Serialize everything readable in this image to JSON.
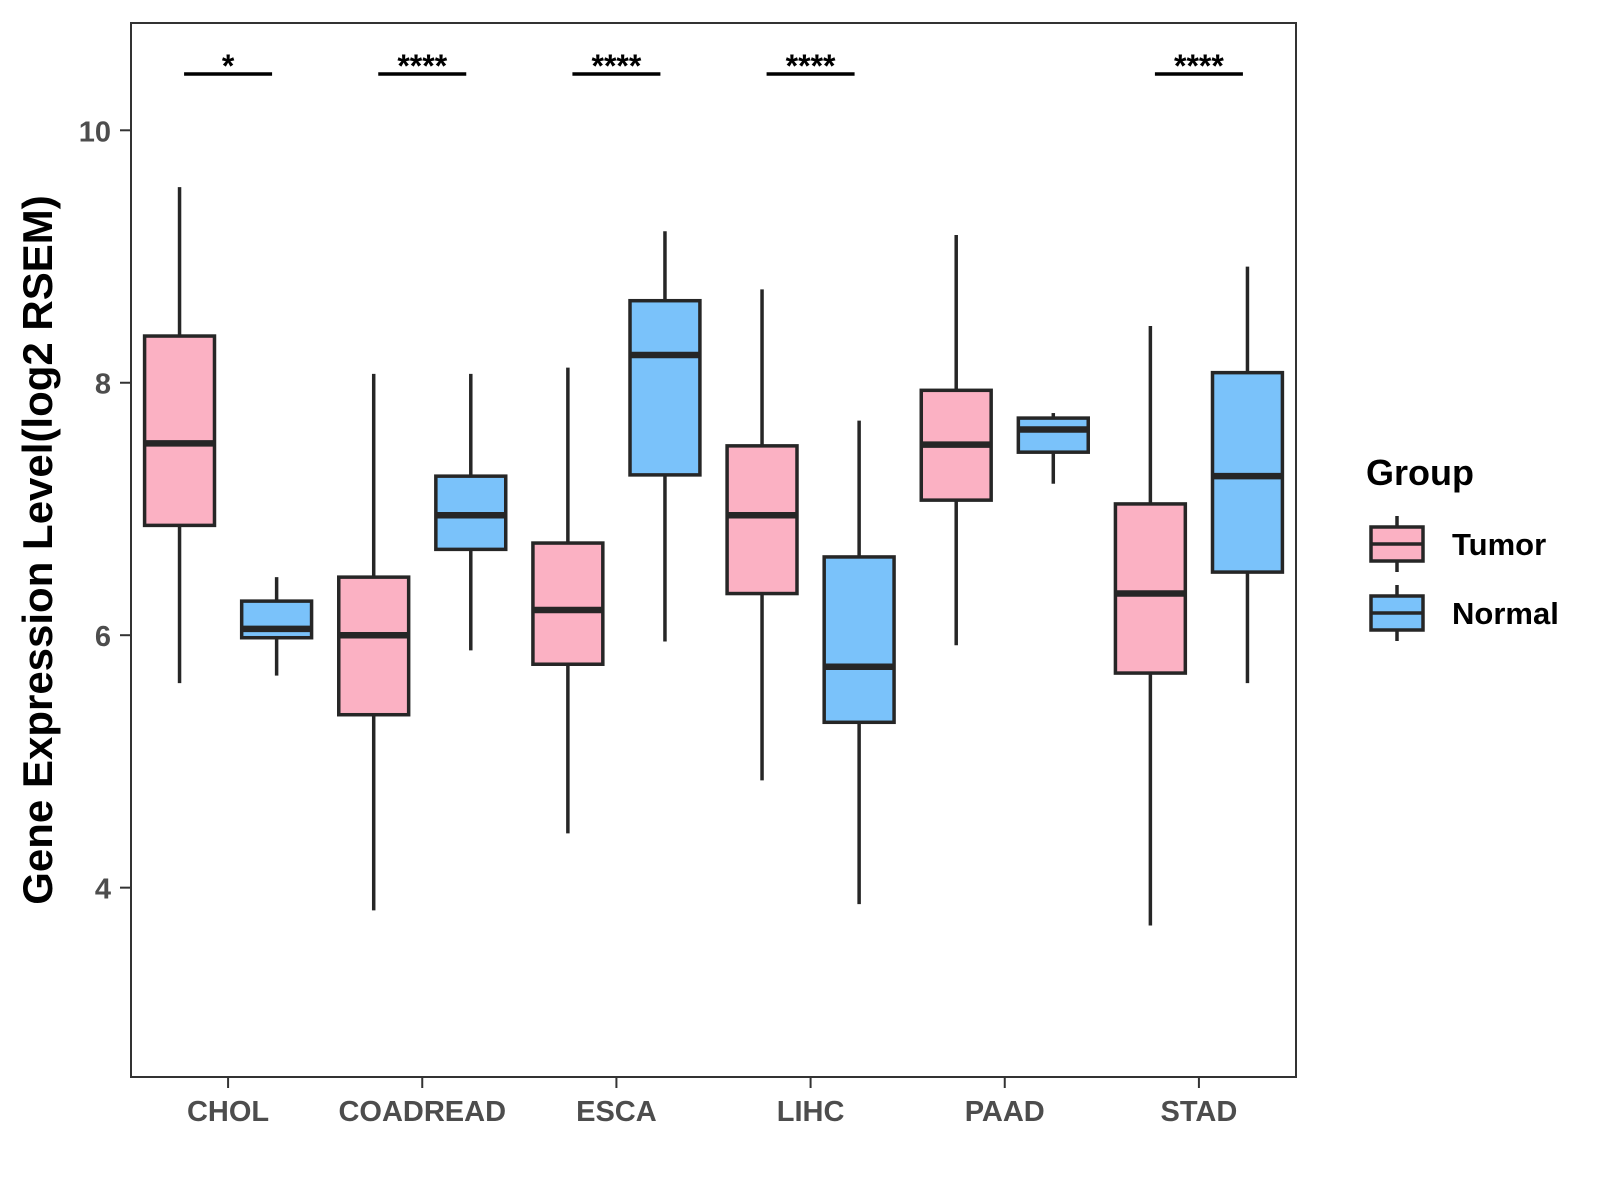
{
  "chart_data": {
    "type": "boxplot",
    "title": "",
    "xlabel": "",
    "ylabel": "Gene Expression Level(log2 RSEM)",
    "ylim": [
      2.5,
      10.85
    ],
    "yticks": [
      4,
      6,
      8,
      10
    ],
    "grid": false,
    "categories": [
      "CHOL",
      "COADREAD",
      "ESCA",
      "LIHC",
      "PAAD",
      "STAD"
    ],
    "legend": {
      "title": "Group",
      "position": "right",
      "entries": [
        "Tumor",
        "Normal"
      ]
    },
    "series": [
      {
        "name": "Tumor",
        "color": "#FBB1C3",
        "boxes": [
          {
            "whisker_low": 5.62,
            "q1": 6.87,
            "median": 7.52,
            "q3": 8.37,
            "whisker_high": 9.55
          },
          {
            "whisker_low": 3.82,
            "q1": 5.37,
            "median": 6.0,
            "q3": 6.46,
            "whisker_high": 8.07
          },
          {
            "whisker_low": 4.43,
            "q1": 5.77,
            "median": 6.2,
            "q3": 6.73,
            "whisker_high": 8.12
          },
          {
            "whisker_low": 4.85,
            "q1": 6.33,
            "median": 6.95,
            "q3": 7.5,
            "whisker_high": 8.74
          },
          {
            "whisker_low": 5.92,
            "q1": 7.07,
            "median": 7.51,
            "q3": 7.94,
            "whisker_high": 9.17
          },
          {
            "whisker_low": 3.7,
            "q1": 5.7,
            "median": 6.33,
            "q3": 7.04,
            "whisker_high": 8.45
          }
        ]
      },
      {
        "name": "Normal",
        "color": "#7AC2FA",
        "boxes": [
          {
            "whisker_low": 5.68,
            "q1": 5.98,
            "median": 6.05,
            "q3": 6.27,
            "whisker_high": 6.46
          },
          {
            "whisker_low": 5.88,
            "q1": 6.68,
            "median": 6.95,
            "q3": 7.26,
            "whisker_high": 8.07
          },
          {
            "whisker_low": 5.95,
            "q1": 7.27,
            "median": 8.22,
            "q3": 8.65,
            "whisker_high": 9.2
          },
          {
            "whisker_low": 3.87,
            "q1": 5.31,
            "median": 5.75,
            "q3": 6.62,
            "whisker_high": 7.7
          },
          {
            "whisker_low": 7.2,
            "q1": 7.45,
            "median": 7.63,
            "q3": 7.72,
            "whisker_high": 7.76
          },
          {
            "whisker_low": 5.62,
            "q1": 6.5,
            "median": 7.26,
            "q3": 8.08,
            "whisker_high": 8.92
          }
        ]
      }
    ],
    "significance": [
      "*",
      "****",
      "****",
      "****",
      "",
      "****"
    ]
  }
}
